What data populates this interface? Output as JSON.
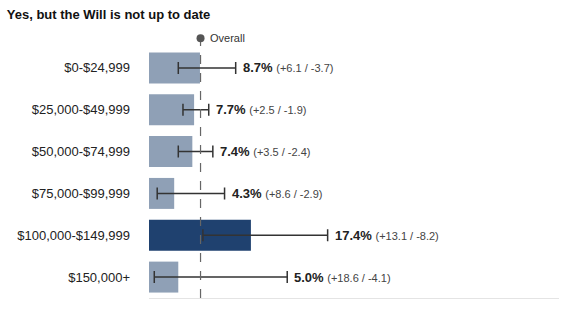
{
  "chart_data": {
    "type": "bar",
    "title": "Yes, but the Will is not up to date",
    "orientation": "horizontal",
    "categories": [
      "$0-$24,999",
      "$25,000-$49,999",
      "$50,000-$74,999",
      "$75,000-$99,999",
      "$100,000-$149,999",
      "$150,000+"
    ],
    "values": [
      8.7,
      7.7,
      7.4,
      4.3,
      17.4,
      5.0
    ],
    "value_labels": [
      "8.7%",
      "7.7%",
      "7.4%",
      "4.3%",
      "17.4%",
      "5.0%"
    ],
    "error_plus": [
      6.1,
      2.5,
      3.5,
      8.6,
      13.1,
      18.6
    ],
    "error_minus": [
      3.7,
      1.9,
      2.4,
      2.9,
      8.2,
      4.1
    ],
    "error_labels": [
      "(+6.1 / -3.7)",
      "(+2.5 / -1.9)",
      "(+3.5 / -2.4)",
      "(+8.6 / -2.9)",
      "(+13.1 / -8.2)",
      "(+18.6 / -4.1)"
    ],
    "overall": 8.8,
    "overall_label": "Overall",
    "colors": [
      "#8fa0b6",
      "#8fa0b6",
      "#8fa0b6",
      "#8fa0b6",
      "#1f416f",
      "#8fa0b6"
    ],
    "xlim": [
      0,
      70
    ],
    "xticks": [],
    "grid": false,
    "data_labels": true,
    "tick_labels": "y"
  }
}
